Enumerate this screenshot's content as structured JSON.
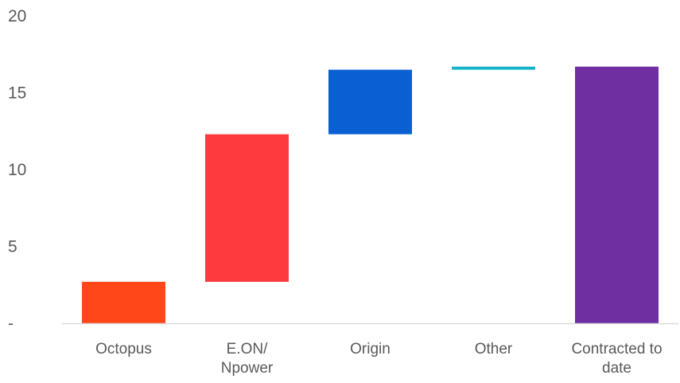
{
  "chart_data": {
    "type": "bar",
    "subtype": "waterfall",
    "title": "",
    "xlabel": "",
    "ylabel": "",
    "ylim": [
      0,
      20
    ],
    "y_ticks": [
      {
        "value": 0,
        "label": "-"
      },
      {
        "value": 5,
        "label": "5"
      },
      {
        "value": 10,
        "label": "10"
      },
      {
        "value": 15,
        "label": "15"
      },
      {
        "value": 20,
        "label": "20"
      }
    ],
    "grid": false,
    "legend": "none",
    "categories": [
      [
        "Octopus"
      ],
      [
        "E.ON/",
        "Npower"
      ],
      [
        "Origin"
      ],
      [
        "Other"
      ],
      [
        "Contracted to",
        "date"
      ]
    ],
    "bars": [
      {
        "base": 0,
        "value": 2.7,
        "color": "#ff4719"
      },
      {
        "base": 2.7,
        "value": 9.6,
        "color": "#ff3a3f"
      },
      {
        "base": 12.3,
        "value": 4.2,
        "color": "#0a5fd2"
      },
      {
        "base": 16.5,
        "value": 0.2,
        "color": "#12b3c8"
      },
      {
        "base": 0,
        "value": 16.7,
        "color": "#6f2fa0"
      }
    ],
    "axis_color": "#d9d9d9"
  }
}
